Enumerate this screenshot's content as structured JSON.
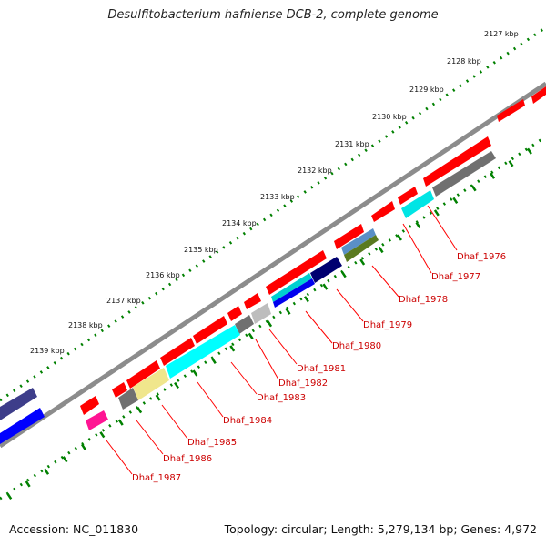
{
  "title": "Desulfitobacterium hafniense DCB-2, complete genome",
  "footer": {
    "accession": "Accession: NC_011830",
    "summary": "Topology: circular; Length: 5,279,134 bp; Genes: 4,972"
  },
  "kbp_labels": [
    "2127 kbp",
    "2128 kbp",
    "2129 kbp",
    "2130 kbp",
    "2131 kbp",
    "2132 kbp",
    "2133 kbp",
    "2134 kbp",
    "2135 kbp",
    "2136 kbp",
    "2137 kbp",
    "2138 kbp",
    "2139 kbp"
  ],
  "gene_labels": [
    "Dhaf_1976",
    "Dhaf_1977",
    "Dhaf_1978",
    "Dhaf_1979",
    "Dhaf_1980",
    "Dhaf_1981",
    "Dhaf_1982",
    "Dhaf_1983",
    "Dhaf_1984",
    "Dhaf_1985",
    "Dhaf_1986",
    "Dhaf_1987"
  ],
  "colors": {
    "forward": "#ff0000",
    "backbone": "#808080",
    "ticks": "#008000",
    "labels": "#cc0000"
  }
}
